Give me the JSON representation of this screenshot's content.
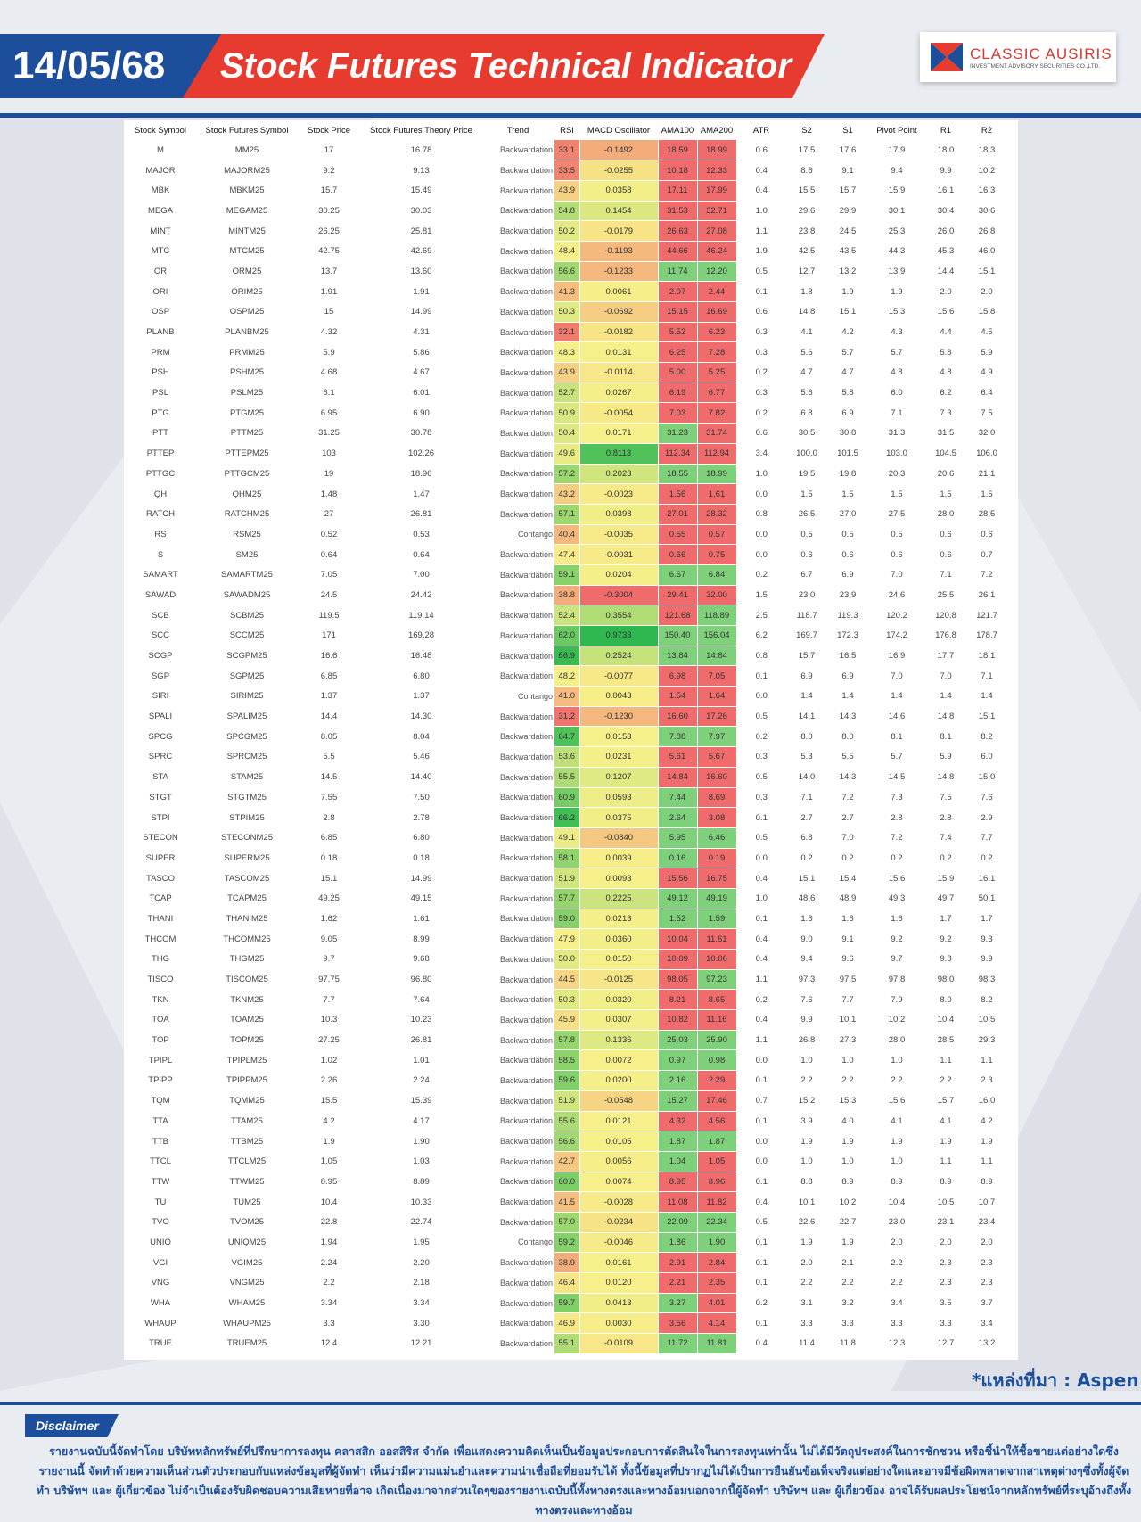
{
  "header": {
    "date": "14/05/68",
    "title": "Stock Futures Technical Indicator",
    "logo_name": "CLASSIC AUSIRIS",
    "logo_sub": "INVESTMENT ADVISORY SECURITIES CO.,LTD."
  },
  "colors": {
    "brand_blue": "#1d4e9b",
    "brand_red": "#e63b2e",
    "scale_red": "#f06b6b",
    "scale_yellow": "#f7f08a",
    "scale_green": "#2eb84f"
  },
  "columns": [
    "Stock Symbol",
    "Stock Futures Symbol",
    "Stock Price",
    "Stock Futures Theory Price",
    "Trend",
    "RSI",
    "MACD Oscillator",
    "AMA100",
    "AMA200",
    "ATR",
    "S2",
    "S1",
    "Pivot Point",
    "R1",
    "R2"
  ],
  "rows": [
    [
      "M",
      "MM25",
      "17",
      "16.78",
      "Backwardation",
      "33.1",
      "-0.1492",
      "18.59",
      "18.99",
      "0.6",
      "17.5",
      "17.6",
      "17.9",
      "18.0",
      "18.3"
    ],
    [
      "MAJOR",
      "MAJORM25",
      "9.2",
      "9.13",
      "Backwardation",
      "33.5",
      "-0.0255",
      "10.18",
      "12.33",
      "0.4",
      "8.6",
      "9.1",
      "9.4",
      "9.9",
      "10.2"
    ],
    [
      "MBK",
      "MBKM25",
      "15.7",
      "15.49",
      "Backwardation",
      "43.9",
      "0.0358",
      "17.11",
      "17.99",
      "0.4",
      "15.5",
      "15.7",
      "15.9",
      "16.1",
      "16.3"
    ],
    [
      "MEGA",
      "MEGAM25",
      "30.25",
      "30.03",
      "Backwardation",
      "54.8",
      "0.1454",
      "31.53",
      "32.71",
      "1.0",
      "29.6",
      "29.9",
      "30.1",
      "30.4",
      "30.6"
    ],
    [
      "MINT",
      "MINTM25",
      "26.25",
      "25.81",
      "Backwardation",
      "50.2",
      "-0.0179",
      "26.63",
      "27.08",
      "1.1",
      "23.8",
      "24.5",
      "25.3",
      "26.0",
      "26.8"
    ],
    [
      "MTC",
      "MTCM25",
      "42.75",
      "42.69",
      "Backwardation",
      "48.4",
      "-0.1193",
      "44.66",
      "46.24",
      "1.9",
      "42.5",
      "43.5",
      "44.3",
      "45.3",
      "46.0"
    ],
    [
      "OR",
      "ORM25",
      "13.7",
      "13.60",
      "Backwardation",
      "56.6",
      "-0.1233",
      "11.74",
      "12.20",
      "0.5",
      "12.7",
      "13.2",
      "13.9",
      "14.4",
      "15.1"
    ],
    [
      "ORI",
      "ORIM25",
      "1.91",
      "1.91",
      "Backwardation",
      "41.3",
      "0.0061",
      "2.07",
      "2.44",
      "0.1",
      "1.8",
      "1.9",
      "1.9",
      "2.0",
      "2.0"
    ],
    [
      "OSP",
      "OSPM25",
      "15",
      "14.99",
      "Backwardation",
      "50.3",
      "-0.0692",
      "15.15",
      "16.69",
      "0.6",
      "14.8",
      "15.1",
      "15.3",
      "15.6",
      "15.8"
    ],
    [
      "PLANB",
      "PLANBM25",
      "4.32",
      "4.31",
      "Backwardation",
      "32.1",
      "-0.0182",
      "5.52",
      "6.23",
      "0.3",
      "4.1",
      "4.2",
      "4.3",
      "4.4",
      "4.5"
    ],
    [
      "PRM",
      "PRMM25",
      "5.9",
      "5.86",
      "Backwardation",
      "48.3",
      "0.0131",
      "6.25",
      "7.28",
      "0.3",
      "5.6",
      "5.7",
      "5.7",
      "5.8",
      "5.9"
    ],
    [
      "PSH",
      "PSHM25",
      "4.68",
      "4.67",
      "Backwardation",
      "43.9",
      "-0.0114",
      "5.00",
      "5.25",
      "0.2",
      "4.7",
      "4.7",
      "4.8",
      "4.8",
      "4.9"
    ],
    [
      "PSL",
      "PSLM25",
      "6.1",
      "6.01",
      "Backwardation",
      "52.7",
      "0.0267",
      "6.19",
      "6.77",
      "0.3",
      "5.6",
      "5.8",
      "6.0",
      "6.2",
      "6.4"
    ],
    [
      "PTG",
      "PTGM25",
      "6.95",
      "6.90",
      "Backwardation",
      "50.9",
      "-0.0054",
      "7.03",
      "7.82",
      "0.2",
      "6.8",
      "6.9",
      "7.1",
      "7.3",
      "7.5"
    ],
    [
      "PTT",
      "PTTM25",
      "31.25",
      "30.78",
      "Backwardation",
      "50.4",
      "0.0171",
      "31.23",
      "31.74",
      "0.6",
      "30.5",
      "30.8",
      "31.3",
      "31.5",
      "32.0"
    ],
    [
      "PTTEP",
      "PTTEPM25",
      "103",
      "102.26",
      "Backwardation",
      "49.6",
      "0.8113",
      "112.34",
      "112.94",
      "3.4",
      "100.0",
      "101.5",
      "103.0",
      "104.5",
      "106.0"
    ],
    [
      "PTTGC",
      "PTTGCM25",
      "19",
      "18.96",
      "Backwardation",
      "57.2",
      "0.2023",
      "18.55",
      "18.99",
      "1.0",
      "19.5",
      "19.8",
      "20.3",
      "20.6",
      "21.1"
    ],
    [
      "QH",
      "QHM25",
      "1.48",
      "1.47",
      "Backwardation",
      "43.2",
      "-0.0023",
      "1.56",
      "1.61",
      "0.0",
      "1.5",
      "1.5",
      "1.5",
      "1.5",
      "1.5"
    ],
    [
      "RATCH",
      "RATCHM25",
      "27",
      "26.81",
      "Backwardation",
      "57.1",
      "0.0398",
      "27.01",
      "28.32",
      "0.8",
      "26.5",
      "27.0",
      "27.5",
      "28.0",
      "28.5"
    ],
    [
      "RS",
      "RSM25",
      "0.52",
      "0.53",
      "Contango",
      "40.4",
      "-0.0035",
      "0.55",
      "0.57",
      "0.0",
      "0.5",
      "0.5",
      "0.5",
      "0.6",
      "0.6"
    ],
    [
      "S",
      "SM25",
      "0.64",
      "0.64",
      "Backwardation",
      "47.4",
      "-0.0031",
      "0.66",
      "0.75",
      "0.0",
      "0.6",
      "0.6",
      "0.6",
      "0.6",
      "0.7"
    ],
    [
      "SAMART",
      "SAMARTM25",
      "7.05",
      "7.00",
      "Backwardation",
      "59.1",
      "0.0204",
      "6.67",
      "6.84",
      "0.2",
      "6.7",
      "6.9",
      "7.0",
      "7.1",
      "7.2"
    ],
    [
      "SAWAD",
      "SAWADM25",
      "24.5",
      "24.42",
      "Backwardation",
      "38.8",
      "-0.3004",
      "29.41",
      "32.00",
      "1.5",
      "23.0",
      "23.9",
      "24.6",
      "25.5",
      "26.1"
    ],
    [
      "SCB",
      "SCBM25",
      "119.5",
      "119.14",
      "Backwardation",
      "52.4",
      "0.3554",
      "121.68",
      "118.89",
      "2.5",
      "118.7",
      "119.3",
      "120.2",
      "120.8",
      "121.7"
    ],
    [
      "SCC",
      "SCCM25",
      "171",
      "169.28",
      "Backwardation",
      "62.0",
      "0.9733",
      "150.40",
      "156.04",
      "6.2",
      "169.7",
      "172.3",
      "174.2",
      "176.8",
      "178.7"
    ],
    [
      "SCGP",
      "SCGPM25",
      "16.6",
      "16.48",
      "Backwardation",
      "66.9",
      "0.2524",
      "13.84",
      "14.84",
      "0.8",
      "15.7",
      "16.5",
      "16.9",
      "17.7",
      "18.1"
    ],
    [
      "SGP",
      "SGPM25",
      "6.85",
      "6.80",
      "Backwardation",
      "48.2",
      "-0.0077",
      "6.98",
      "7.05",
      "0.1",
      "6.9",
      "6.9",
      "7.0",
      "7.0",
      "7.1"
    ],
    [
      "SIRI",
      "SIRIM25",
      "1.37",
      "1.37",
      "Contango",
      "41.0",
      "0.0043",
      "1.54",
      "1.64",
      "0.0",
      "1.4",
      "1.4",
      "1.4",
      "1.4",
      "1.4"
    ],
    [
      "SPALI",
      "SPALIM25",
      "14.4",
      "14.30",
      "Backwardation",
      "31.2",
      "-0.1230",
      "16.60",
      "17.26",
      "0.5",
      "14.1",
      "14.3",
      "14.6",
      "14.8",
      "15.1"
    ],
    [
      "SPCG",
      "SPCGM25",
      "8.05",
      "8.04",
      "Backwardation",
      "64.7",
      "0.0153",
      "7.88",
      "7.97",
      "0.2",
      "8.0",
      "8.0",
      "8.1",
      "8.1",
      "8.2"
    ],
    [
      "SPRC",
      "SPRCM25",
      "5.5",
      "5.46",
      "Backwardation",
      "53.6",
      "0.0231",
      "5.61",
      "5.67",
      "0.3",
      "5.3",
      "5.5",
      "5.7",
      "5.9",
      "6.0"
    ],
    [
      "STA",
      "STAM25",
      "14.5",
      "14.40",
      "Backwardation",
      "55.5",
      "0.1207",
      "14.84",
      "16.60",
      "0.5",
      "14.0",
      "14.3",
      "14.5",
      "14.8",
      "15.0"
    ],
    [
      "STGT",
      "STGTM25",
      "7.55",
      "7.50",
      "Backwardation",
      "60.9",
      "0.0593",
      "7.44",
      "8.69",
      "0.3",
      "7.1",
      "7.2",
      "7.3",
      "7.5",
      "7.6"
    ],
    [
      "STPI",
      "STPIM25",
      "2.8",
      "2.78",
      "Backwardation",
      "66.2",
      "0.0375",
      "2.64",
      "3.08",
      "0.1",
      "2.7",
      "2.7",
      "2.8",
      "2.8",
      "2.9"
    ],
    [
      "STECON",
      "STECONM25",
      "6.85",
      "6.80",
      "Backwardation",
      "49.1",
      "-0.0840",
      "5.95",
      "6.46",
      "0.5",
      "6.8",
      "7.0",
      "7.2",
      "7.4",
      "7.7"
    ],
    [
      "SUPER",
      "SUPERM25",
      "0.18",
      "0.18",
      "Backwardation",
      "58.1",
      "0.0039",
      "0.16",
      "0.19",
      "0.0",
      "0.2",
      "0.2",
      "0.2",
      "0.2",
      "0.2"
    ],
    [
      "TASCO",
      "TASCOM25",
      "15.1",
      "14.99",
      "Backwardation",
      "51.9",
      "0.0093",
      "15.56",
      "16.75",
      "0.4",
      "15.1",
      "15.4",
      "15.6",
      "15.9",
      "16.1"
    ],
    [
      "TCAP",
      "TCAPM25",
      "49.25",
      "49.15",
      "Backwardation",
      "57.7",
      "0.2225",
      "49.12",
      "49.19",
      "1.0",
      "48.6",
      "48.9",
      "49.3",
      "49.7",
      "50.1"
    ],
    [
      "THANI",
      "THANIM25",
      "1.62",
      "1.61",
      "Backwardation",
      "59.0",
      "0.0213",
      "1.52",
      "1.59",
      "0.1",
      "1.6",
      "1.6",
      "1.6",
      "1.7",
      "1.7"
    ],
    [
      "THCOM",
      "THCOMM25",
      "9.05",
      "8.99",
      "Backwardation",
      "47.9",
      "0.0360",
      "10.04",
      "11.61",
      "0.4",
      "9.0",
      "9.1",
      "9.2",
      "9.2",
      "9.3"
    ],
    [
      "THG",
      "THGM25",
      "9.7",
      "9.68",
      "Backwardation",
      "50.0",
      "0.0150",
      "10.09",
      "10.06",
      "0.4",
      "9.4",
      "9.6",
      "9.7",
      "9.8",
      "9.9"
    ],
    [
      "TISCO",
      "TISCOM25",
      "97.75",
      "96.80",
      "Backwardation",
      "44.5",
      "-0.0125",
      "98.05",
      "97.23",
      "1.1",
      "97.3",
      "97.5",
      "97.8",
      "98.0",
      "98.3"
    ],
    [
      "TKN",
      "TKNM25",
      "7.7",
      "7.64",
      "Backwardation",
      "50.3",
      "0.0320",
      "8.21",
      "8.65",
      "0.2",
      "7.6",
      "7.7",
      "7.9",
      "8.0",
      "8.2"
    ],
    [
      "TOA",
      "TOAM25",
      "10.3",
      "10.23",
      "Backwardation",
      "45.9",
      "0.0307",
      "10.82",
      "11.16",
      "0.4",
      "9.9",
      "10.1",
      "10.2",
      "10.4",
      "10.5"
    ],
    [
      "TOP",
      "TOPM25",
      "27.25",
      "26.81",
      "Backwardation",
      "57.8",
      "0.1336",
      "25.03",
      "25.90",
      "1.1",
      "26.8",
      "27.3",
      "28.0",
      "28.5",
      "29.3"
    ],
    [
      "TPIPL",
      "TPIPLM25",
      "1.02",
      "1.01",
      "Backwardation",
      "58.5",
      "0.0072",
      "0.97",
      "0.98",
      "0.0",
      "1.0",
      "1.0",
      "1.0",
      "1.1",
      "1.1"
    ],
    [
      "TPIPP",
      "TPIPPM25",
      "2.26",
      "2.24",
      "Backwardation",
      "59.6",
      "0.0200",
      "2.16",
      "2.29",
      "0.1",
      "2.2",
      "2.2",
      "2.2",
      "2.2",
      "2.3"
    ],
    [
      "TQM",
      "TQMM25",
      "15.5",
      "15.39",
      "Backwardation",
      "51.9",
      "-0.0548",
      "15.27",
      "17.46",
      "0.7",
      "15.2",
      "15.3",
      "15.6",
      "15.7",
      "16.0"
    ],
    [
      "TTA",
      "TTAM25",
      "4.2",
      "4.17",
      "Backwardation",
      "55.6",
      "0.0121",
      "4.32",
      "4.56",
      "0.1",
      "3.9",
      "4.0",
      "4.1",
      "4.1",
      "4.2"
    ],
    [
      "TTB",
      "TTBM25",
      "1.9",
      "1.90",
      "Backwardation",
      "56.6",
      "0.0105",
      "1.87",
      "1.87",
      "0.0",
      "1.9",
      "1.9",
      "1.9",
      "1.9",
      "1.9"
    ],
    [
      "TTCL",
      "TTCLM25",
      "1.05",
      "1.03",
      "Backwardation",
      "42.7",
      "0.0056",
      "1.04",
      "1.05",
      "0.0",
      "1.0",
      "1.0",
      "1.0",
      "1.1",
      "1.1"
    ],
    [
      "TTW",
      "TTWM25",
      "8.95",
      "8.89",
      "Backwardation",
      "60.0",
      "0.0074",
      "8.95",
      "8.96",
      "0.1",
      "8.8",
      "8.9",
      "8.9",
      "8.9",
      "8.9"
    ],
    [
      "TU",
      "TUM25",
      "10.4",
      "10.33",
      "Backwardation",
      "41.5",
      "-0.0028",
      "11.08",
      "11.82",
      "0.4",
      "10.1",
      "10.2",
      "10.4",
      "10.5",
      "10.7"
    ],
    [
      "TVO",
      "TVOM25",
      "22.8",
      "22.74",
      "Backwardation",
      "57.0",
      "-0.0234",
      "22.09",
      "22.34",
      "0.5",
      "22.6",
      "22.7",
      "23.0",
      "23.1",
      "23.4"
    ],
    [
      "UNIQ",
      "UNIQM25",
      "1.94",
      "1.95",
      "Contango",
      "59.2",
      "-0.0046",
      "1.86",
      "1.90",
      "0.1",
      "1.9",
      "1.9",
      "2.0",
      "2.0",
      "2.0"
    ],
    [
      "VGI",
      "VGIM25",
      "2.24",
      "2.20",
      "Backwardation",
      "38.9",
      "0.0161",
      "2.91",
      "2.84",
      "0.1",
      "2.0",
      "2.1",
      "2.2",
      "2.3",
      "2.3"
    ],
    [
      "VNG",
      "VNGM25",
      "2.2",
      "2.18",
      "Backwardation",
      "46.4",
      "0.0120",
      "2.21",
      "2.35",
      "0.1",
      "2.2",
      "2.2",
      "2.2",
      "2.3",
      "2.3"
    ],
    [
      "WHA",
      "WHAM25",
      "3.34",
      "3.34",
      "Backwardation",
      "59.7",
      "0.0413",
      "3.27",
      "4.01",
      "0.2",
      "3.1",
      "3.2",
      "3.4",
      "3.5",
      "3.7"
    ],
    [
      "WHAUP",
      "WHAUPM25",
      "3.3",
      "3.30",
      "Backwardation",
      "46.9",
      "0.0030",
      "3.56",
      "4.14",
      "0.1",
      "3.3",
      "3.3",
      "3.3",
      "3.3",
      "3.4"
    ],
    [
      "TRUE",
      "TRUEM25",
      "12.4",
      "12.21",
      "Backwardation",
      "55.1",
      "-0.0109",
      "11.72",
      "11.81",
      "0.4",
      "11.4",
      "11.8",
      "12.3",
      "12.7",
      "13.2"
    ]
  ],
  "source": "*แหล่งที่มา : Aspen",
  "disclaimer": {
    "tag": "Disclaimer",
    "text": "รายงานฉบับนี้จัดทำโดย บริษัทหลักทรัพย์ที่ปรึกษาการลงทุน คลาสสิก ออสสิริส จำกัด เพื่อแสดงความคิดเห็นเป็นข้อมูลประกอบการตัดสินใจในการลงทุนเท่านั้น ไม่ได้มีวัตถุประสงค์ในการชักชวน หรือชี้นำให้ซื้อขายแต่อย่างใดซึ่งรายงานนี้ จัดทำด้วยความเห็นส่วนตัวประกอบกับแหล่งข้อมูลที่ผู้จัดทำ เห็นว่ามีความแม่นยำและความน่าเชื่อถือที่ยอมรับได้ ทั้งนี้ข้อมูลที่ปรากฏไม่ได้เป็นการยืนยันข้อเท็จจริงแต่อย่างใดและอาจมีข้อผิดพลาดจากสาเหตุต่างๆซึ่งทั้งผู้จัดทำ บริษัทฯ และ ผู้เกี่ยวข้อง ไม่จำเป็นต้องรับผิดชอบความเสียหายที่อาจ เกิดเนื่องมาจากส่วนใดๆของรายงานฉบับนี้ทั้งทางตรงและทางอ้อมนอกจากนี้ผู้จัดทำ บริษัทฯ และ ผู้เกี่ยวข้อง อาจได้รับผลประโยชน์จากหลักทรัพย์ที่ระบุอ้างถึงทั้งทางตรงและทางอ้อม"
  }
}
